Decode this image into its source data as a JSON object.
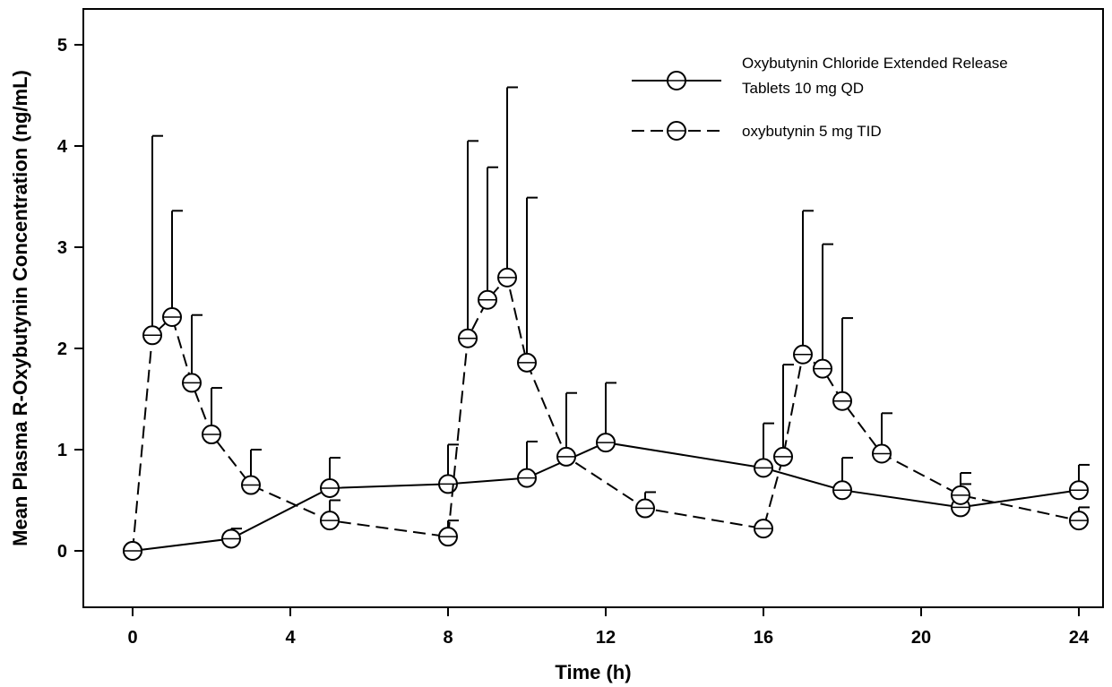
{
  "chart_data": {
    "type": "line",
    "title": "",
    "xlabel": "Time (h)",
    "ylabel": "Mean Plasma R-Oxybutynin Concentration (ng/mL)",
    "xlim": [
      -0.5,
      25
    ],
    "ylim": [
      -0.55,
      5.45
    ],
    "xticks": [
      0,
      4,
      8,
      12,
      16,
      20,
      24
    ],
    "yticks": [
      0,
      1,
      2,
      3,
      4,
      5
    ],
    "grid": false,
    "legend_position": "top-right",
    "series": [
      {
        "name": "Oxybutynin Chloride Extended Release Tablets 10 mg QD",
        "legend_lines": [
          "Oxybutynin Chloride Extended Release",
          "Tablets 10 mg QD"
        ],
        "line_style": "solid",
        "marker": "open-circle",
        "points": [
          {
            "x": 0,
            "y": 0.0,
            "err": null
          },
          {
            "x": 2.5,
            "y": 0.12,
            "err": 0.22
          },
          {
            "x": 5,
            "y": 0.62,
            "err": 0.92
          },
          {
            "x": 8,
            "y": 0.66,
            "err": 1.05
          },
          {
            "x": 10,
            "y": 0.72,
            "err": 1.08
          },
          {
            "x": 12,
            "y": 1.07,
            "err": 1.66
          },
          {
            "x": 16,
            "y": 0.82,
            "err": 1.26
          },
          {
            "x": 18,
            "y": 0.6,
            "err": 0.92
          },
          {
            "x": 21,
            "y": 0.43,
            "err": 0.66
          },
          {
            "x": 24,
            "y": 0.6,
            "err": 0.85
          }
        ]
      },
      {
        "name": "oxybutynin 5 mg TID",
        "legend_lines": [
          "oxybutynin 5 mg TID"
        ],
        "line_style": "dashed",
        "marker": "open-circle",
        "points": [
          {
            "x": 0,
            "y": 0.0,
            "err": null
          },
          {
            "x": 0.5,
            "y": 2.13,
            "err": 4.1
          },
          {
            "x": 1,
            "y": 2.31,
            "err": 3.36
          },
          {
            "x": 1.5,
            "y": 1.66,
            "err": 2.33
          },
          {
            "x": 2,
            "y": 1.15,
            "err": 1.61
          },
          {
            "x": 3,
            "y": 0.65,
            "err": 1.0
          },
          {
            "x": 5,
            "y": 0.3,
            "err": 0.5
          },
          {
            "x": 8,
            "y": 0.14,
            "err": 0.3
          },
          {
            "x": 8.5,
            "y": 2.1,
            "err": 4.05
          },
          {
            "x": 9,
            "y": 2.48,
            "err": 3.79
          },
          {
            "x": 9.5,
            "y": 2.7,
            "err": 4.58
          },
          {
            "x": 10,
            "y": 1.86,
            "err": 3.49
          },
          {
            "x": 11,
            "y": 0.93,
            "err": 1.56
          },
          {
            "x": 13,
            "y": 0.42,
            "err": 0.58
          },
          {
            "x": 16,
            "y": 0.22,
            "err": null
          },
          {
            "x": 16.5,
            "y": 0.93,
            "err": 1.84
          },
          {
            "x": 17,
            "y": 1.94,
            "err": 3.36
          },
          {
            "x": 17.5,
            "y": 1.8,
            "err": 3.03
          },
          {
            "x": 18,
            "y": 1.48,
            "err": 2.3
          },
          {
            "x": 19,
            "y": 0.96,
            "err": 1.36
          },
          {
            "x": 21,
            "y": 0.55,
            "err": 0.77
          },
          {
            "x": 24,
            "y": 0.3,
            "err": 0.43
          }
        ]
      }
    ]
  }
}
